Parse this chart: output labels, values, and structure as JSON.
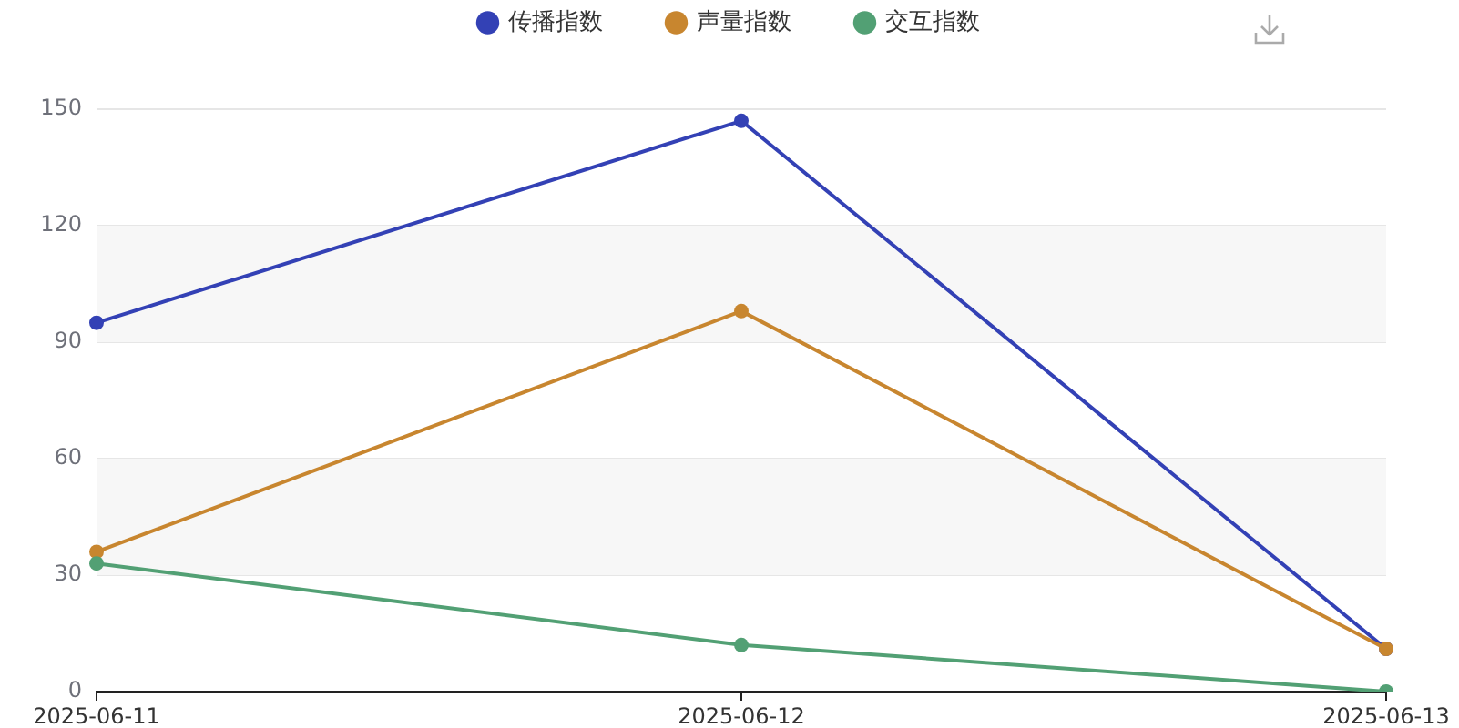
{
  "chart_data": {
    "type": "line",
    "categories": [
      "2025-06-11",
      "2025-06-12",
      "2025-06-13"
    ],
    "series": [
      {
        "name": "传播指数",
        "color": "#3341b5",
        "values": [
          95,
          147,
          11
        ]
      },
      {
        "name": "声量指数",
        "color": "#c8862f",
        "values": [
          36,
          98,
          11
        ]
      },
      {
        "name": "交互指数",
        "color": "#52a074",
        "values": [
          33,
          12,
          0
        ]
      }
    ],
    "ylim": [
      0,
      150
    ],
    "yticks": [
      0,
      30,
      60,
      90,
      120,
      150
    ],
    "grid": "y",
    "legend": "top",
    "marker": "circle",
    "line_style": "solid",
    "bands": [
      {
        "axis": "y",
        "from": 30,
        "to": 60,
        "color": "#f7f7f7"
      },
      {
        "axis": "y",
        "from": 90,
        "to": 120,
        "color": "#f7f7f7"
      }
    ]
  }
}
